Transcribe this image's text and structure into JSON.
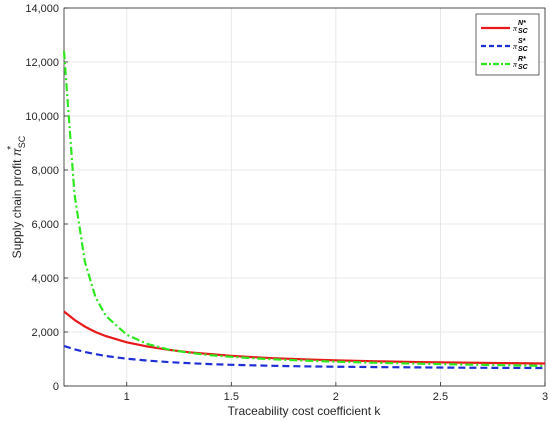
{
  "chart_data": {
    "type": "line",
    "title": "",
    "xlabel": "Traceability cost coefficient k",
    "ylabel": {
      "main": "Supply chain profit ",
      "symbol": "π",
      "sup": "*",
      "sub": "SC"
    },
    "xlim": [
      0.7,
      3
    ],
    "ylim": [
      0,
      14000
    ],
    "xticks": [
      1,
      1.5,
      2,
      2.5,
      3
    ],
    "xtick_labels": [
      "1",
      "1.5",
      "2",
      "2.5",
      "3"
    ],
    "yticks": [
      0,
      2000,
      4000,
      6000,
      8000,
      10000,
      12000,
      14000
    ],
    "ytick_labels": [
      "0",
      "2,000",
      "4,000",
      "6,000",
      "8,000",
      "10,000",
      "12,000",
      "14,000"
    ],
    "grid": true,
    "legend_position": "top-right",
    "x": [
      0.7,
      0.75,
      0.8,
      0.85,
      0.9,
      1.0,
      1.1,
      1.2,
      1.3,
      1.4,
      1.5,
      1.6,
      1.7,
      1.8,
      1.9,
      2.0,
      2.2,
      2.4,
      2.6,
      2.8,
      3.0
    ],
    "series": [
      {
        "name": {
          "symbol": "π",
          "sup": "N*",
          "sub": "SC"
        },
        "color": "#e8191b",
        "style": "solid",
        "values": [
          2760,
          2450,
          2200,
          2000,
          1850,
          1620,
          1460,
          1340,
          1250,
          1180,
          1120,
          1070,
          1030,
          1000,
          975,
          950,
          915,
          885,
          865,
          850,
          835
        ]
      },
      {
        "name": {
          "symbol": "π",
          "sup": "S*",
          "sub": "SC"
        },
        "color": "#1f2fd6",
        "style": "dashed",
        "values": [
          1480,
          1360,
          1260,
          1180,
          1110,
          1010,
          940,
          885,
          845,
          810,
          785,
          765,
          748,
          735,
          724,
          715,
          700,
          688,
          678,
          670,
          665
        ]
      },
      {
        "name": {
          "symbol": "π",
          "sup": "R*",
          "sub": "SC"
        },
        "color": "#2ee81f",
        "style": "dashdot",
        "values": [
          12400,
          7100,
          4600,
          3300,
          2600,
          1900,
          1550,
          1350,
          1230,
          1140,
          1080,
          1030,
          990,
          955,
          925,
          900,
          860,
          825,
          795,
          770,
          745
        ]
      }
    ]
  }
}
